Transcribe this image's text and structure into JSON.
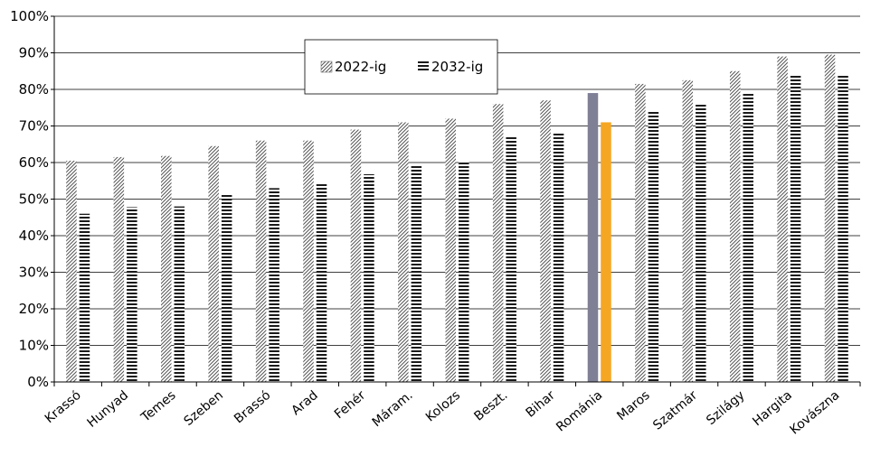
{
  "chart_data": {
    "type": "bar",
    "categories": [
      "Krassó",
      "Hunyad",
      "Temes",
      "Szeben",
      "Brassó",
      "Arad",
      "Fehér",
      "Máram.",
      "Kolozs",
      "Beszt.",
      "Bihar",
      "Románia",
      "Maros",
      "Szatmár",
      "Szilágy",
      "Hargita",
      "Kovászna"
    ],
    "series": [
      {
        "name": "2022-ig",
        "values": [
          60.5,
          61.5,
          61.8,
          64.5,
          66.0,
          66.0,
          69.0,
          71.0,
          72.0,
          76.0,
          77.0,
          79.0,
          81.5,
          82.5,
          85.0,
          89.0,
          89.5
        ]
      },
      {
        "name": "2032-ig",
        "values": [
          46.0,
          47.8,
          48.0,
          51.3,
          53.0,
          54.2,
          56.8,
          59.5,
          60.3,
          67.0,
          68.0,
          71.0,
          74.0,
          75.8,
          78.8,
          84.0,
          84.0
        ]
      }
    ],
    "highlight": {
      "category": "Románia",
      "colors": [
        "#7f7f96",
        "#f5a623"
      ]
    },
    "yticks": [
      "0%",
      "10%",
      "20%",
      "30%",
      "40%",
      "50%",
      "60%",
      "70%",
      "80%",
      "90%",
      "100%"
    ],
    "ylim": [
      0,
      100
    ],
    "grid": true,
    "legend_position": "top-center",
    "colors": {
      "gridline": "#000000",
      "axis": "#000000"
    }
  }
}
